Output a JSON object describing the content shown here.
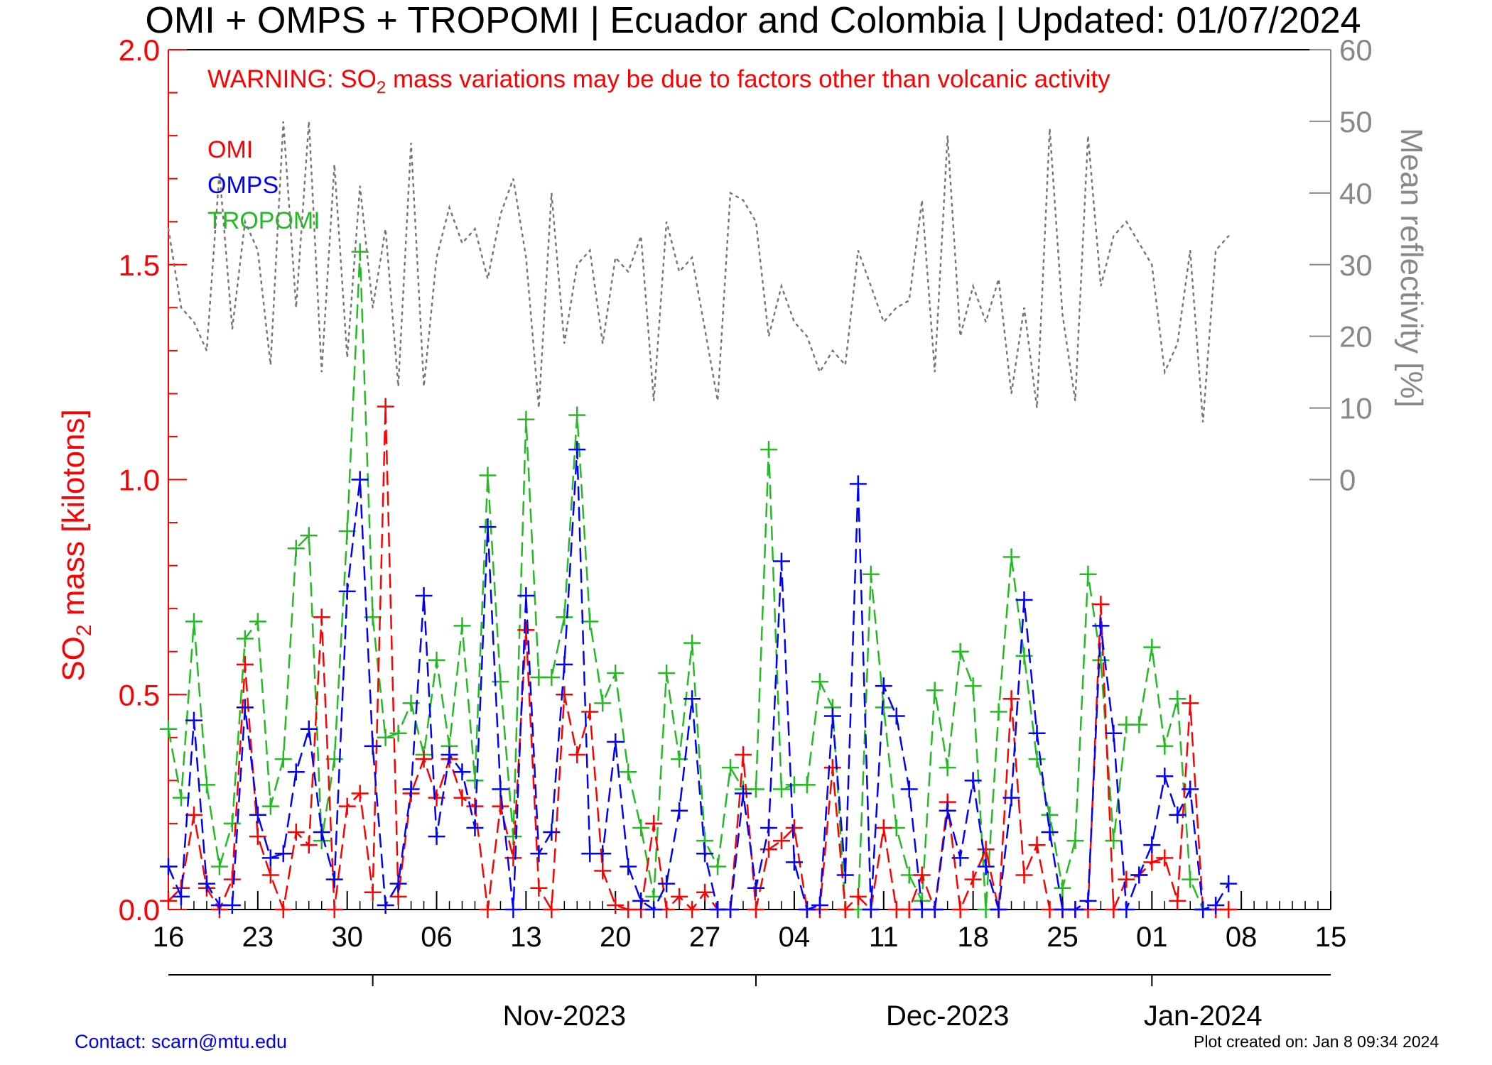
{
  "chart_data": {
    "type": "line",
    "title": "OMI + OMPS + TROPOMI | Ecuador and Colombia | Updated: 01/07/2024",
    "warning_prefix": "WARNING: SO",
    "warning_sub": "2",
    "warning_suffix": " mass variations may be due to factors other than volcanic activity",
    "ylabel_prefix": "SO",
    "ylabel_sub": "2",
    "ylabel_suffix": " mass [kilotons]",
    "y2label": "Mean reflectivity [%]",
    "x_axis": {
      "start": "2023-10-16",
      "end": "2024-01-15",
      "ticks": [
        {
          "date": "2023-10-16",
          "label": "16"
        },
        {
          "date": "2023-10-23",
          "label": "23"
        },
        {
          "date": "2023-10-30",
          "label": "30"
        },
        {
          "date": "2023-11-06",
          "label": "06"
        },
        {
          "date": "2023-11-13",
          "label": "13"
        },
        {
          "date": "2023-11-20",
          "label": "20"
        },
        {
          "date": "2023-11-27",
          "label": "27"
        },
        {
          "date": "2023-12-04",
          "label": "04"
        },
        {
          "date": "2023-12-11",
          "label": "11"
        },
        {
          "date": "2023-12-18",
          "label": "18"
        },
        {
          "date": "2023-12-25",
          "label": "25"
        },
        {
          "date": "2024-01-01",
          "label": "01"
        },
        {
          "date": "2024-01-08",
          "label": "08"
        },
        {
          "date": "2024-01-15",
          "label": "15"
        }
      ],
      "months": [
        {
          "label": "Nov-2023",
          "date": "2023-11-01"
        },
        {
          "label": "Dec-2023",
          "date": "2023-12-01"
        },
        {
          "label": "Jan-2024",
          "date": "2024-01-01"
        }
      ]
    },
    "y_axis": {
      "min": 0.0,
      "max": 2.0,
      "ticks": [
        "0.0",
        "0.5",
        "1.0",
        "1.5",
        "2.0"
      ],
      "minor_step": 0.1
    },
    "y2_axis": {
      "ticks": [
        "0",
        "10",
        "20",
        "30",
        "40",
        "50",
        "60"
      ],
      "maps_to": {
        "0": 1.0,
        "60": 2.0
      }
    },
    "colors": {
      "omi": "#ff0000",
      "omps": "#0000ff",
      "tropomi": "#22bb22",
      "reflectivity": "#777777",
      "axis": "#000000",
      "left_axis": "#ff0000",
      "right_axis": "#888888"
    },
    "legend": {
      "position": "top-left",
      "items": [
        "OMI",
        "OMPS",
        "TROPOMI"
      ]
    },
    "series": [
      {
        "name": "OMI",
        "x": [
          "2023-10-16",
          "2023-10-17",
          "2023-10-18",
          "2023-10-19",
          "2023-10-20",
          "2023-10-21",
          "2023-10-22",
          "2023-10-23",
          "2023-10-24",
          "2023-10-25",
          "2023-10-26",
          "2023-10-27",
          "2023-10-28",
          "2023-10-29",
          "2023-10-30",
          "2023-10-31",
          "2023-11-01",
          "2023-11-02",
          "2023-11-03",
          "2023-11-04",
          "2023-11-05",
          "2023-11-06",
          "2023-11-07",
          "2023-11-08",
          "2023-11-09",
          "2023-11-10",
          "2023-11-11",
          "2023-11-12",
          "2023-11-13",
          "2023-11-14",
          "2023-11-15",
          "2023-11-16",
          "2023-11-17",
          "2023-11-18",
          "2023-11-19",
          "2023-11-20",
          "2023-11-21",
          "2023-11-22",
          "2023-11-23",
          "2023-11-24",
          "2023-11-25",
          "2023-11-26",
          "2023-11-27",
          "2023-11-28",
          "2023-11-29",
          "2023-11-30",
          "2023-12-01",
          "2023-12-02",
          "2023-12-03",
          "2023-12-04",
          "2023-12-05",
          "2023-12-06",
          "2023-12-07",
          "2023-12-08",
          "2023-12-09",
          "2023-12-10",
          "2023-12-11",
          "2023-12-12",
          "2023-12-13",
          "2023-12-14",
          "2023-12-15",
          "2023-12-16",
          "2023-12-17",
          "2023-12-18",
          "2023-12-19",
          "2023-12-20",
          "2023-12-21",
          "2023-12-22",
          "2023-12-23",
          "2023-12-24",
          "2023-12-25",
          "2023-12-26",
          "2023-12-27",
          "2023-12-28",
          "2023-12-29",
          "2023-12-30",
          "2023-12-31",
          "2024-01-01",
          "2024-01-02",
          "2024-01-03",
          "2024-01-04",
          "2024-01-05",
          "2024-01-06",
          "2024-01-07"
        ],
        "y": [
          0.02,
          0.05,
          0.22,
          0.05,
          0.0,
          0.07,
          0.57,
          0.17,
          0.08,
          0.0,
          0.18,
          0.15,
          0.68,
          0.0,
          0.24,
          0.27,
          0.04,
          1.17,
          0.03,
          0.27,
          0.35,
          0.26,
          0.35,
          0.26,
          0.24,
          0.0,
          0.24,
          0.12,
          0.65,
          0.05,
          0.0,
          0.5,
          0.36,
          0.46,
          0.09,
          0.01,
          0.0,
          0.0,
          0.2,
          0.0,
          0.03,
          0.0,
          0.04,
          0.0,
          0.0,
          0.36,
          0.0,
          0.14,
          0.16,
          0.19,
          0.0,
          0.0,
          0.33,
          0.0,
          0.03,
          0.0,
          0.19,
          0.0,
          0.0,
          0.08,
          0.0,
          0.25,
          0.0,
          0.07,
          0.14,
          0.0,
          0.49,
          0.08,
          0.15,
          0.0,
          0.0,
          0.0,
          0.0,
          0.71,
          0.0,
          0.07,
          0.08,
          0.11,
          0.12,
          0.02,
          0.48,
          0.0,
          0.0,
          0.0
        ]
      },
      {
        "name": "OMPS",
        "x": [
          "2023-10-16",
          "2023-10-17",
          "2023-10-18",
          "2023-10-19",
          "2023-10-20",
          "2023-10-21",
          "2023-10-22",
          "2023-10-23",
          "2023-10-24",
          "2023-10-25",
          "2023-10-26",
          "2023-10-27",
          "2023-10-28",
          "2023-10-29",
          "2023-10-30",
          "2023-10-31",
          "2023-11-01",
          "2023-11-02",
          "2023-11-03",
          "2023-11-04",
          "2023-11-05",
          "2023-11-06",
          "2023-11-07",
          "2023-11-08",
          "2023-11-09",
          "2023-11-10",
          "2023-11-11",
          "2023-11-12",
          "2023-11-13",
          "2023-11-14",
          "2023-11-15",
          "2023-11-16",
          "2023-11-17",
          "2023-11-18",
          "2023-11-19",
          "2023-11-20",
          "2023-11-21",
          "2023-11-22",
          "2023-11-23",
          "2023-11-24",
          "2023-11-25",
          "2023-11-26",
          "2023-11-27",
          "2023-11-28",
          "2023-11-29",
          "2023-11-30",
          "2023-12-01",
          "2023-12-02",
          "2023-12-03",
          "2023-12-04",
          "2023-12-05",
          "2023-12-06",
          "2023-12-07",
          "2023-12-08",
          "2023-12-09",
          "2023-12-10",
          "2023-12-11",
          "2023-12-12",
          "2023-12-13",
          "2023-12-14",
          "2023-12-15",
          "2023-12-16",
          "2023-12-17",
          "2023-12-18",
          "2023-12-19",
          "2023-12-20",
          "2023-12-21",
          "2023-12-22",
          "2023-12-23",
          "2023-12-24",
          "2023-12-25",
          "2023-12-26",
          "2023-12-27",
          "2023-12-28",
          "2023-12-29",
          "2023-12-30",
          "2023-12-31",
          "2024-01-01",
          "2024-01-02",
          "2024-01-03",
          "2024-01-04",
          "2024-01-05",
          "2024-01-06",
          "2024-01-07"
        ],
        "y": [
          0.1,
          0.03,
          0.44,
          0.06,
          0.01,
          0.01,
          0.47,
          0.22,
          0.12,
          0.13,
          0.32,
          0.42,
          0.18,
          0.07,
          0.74,
          1.0,
          0.38,
          0.01,
          0.06,
          0.28,
          0.73,
          0.17,
          0.36,
          0.32,
          0.19,
          0.89,
          0.28,
          0.0,
          0.73,
          0.13,
          0.18,
          0.57,
          1.07,
          0.13,
          0.13,
          0.39,
          0.1,
          0.02,
          0.0,
          0.06,
          0.23,
          0.49,
          0.13,
          0.0,
          0.0,
          0.27,
          0.05,
          0.19,
          0.81,
          0.11,
          0.0,
          0.01,
          0.45,
          0.08,
          0.99,
          0.0,
          0.52,
          0.45,
          0.28,
          0.0,
          0.0,
          0.23,
          0.12,
          0.3,
          0.1,
          0.0,
          0.26,
          0.72,
          0.41,
          0.18,
          0.0,
          0.0,
          0.02,
          0.66,
          0.41,
          0.0,
          0.08,
          0.15,
          0.31,
          0.22,
          0.28,
          0.0,
          0.01,
          0.06
        ]
      },
      {
        "name": "TROPOMI",
        "x": [
          "2023-10-16",
          "2023-10-17",
          "2023-10-18",
          "2023-10-19",
          "2023-10-20",
          "2023-10-21",
          "2023-10-22",
          "2023-10-23",
          "2023-10-24",
          "2023-10-25",
          "2023-10-26",
          "2023-10-27",
          "2023-10-28",
          "2023-10-29",
          "2023-10-30",
          "2023-10-31",
          "2023-11-01",
          "2023-11-02",
          "2023-11-03",
          "2023-11-04",
          "2023-11-05",
          "2023-11-06",
          "2023-11-07",
          "2023-11-08",
          "2023-11-09",
          "2023-11-10",
          "2023-11-11",
          "2023-11-12",
          "2023-11-13",
          "2023-11-14",
          "2023-11-15",
          "2023-11-16",
          "2023-11-17",
          "2023-11-18",
          "2023-11-19",
          "2023-11-20",
          "2023-11-21",
          "2023-11-22",
          "2023-11-23",
          "2023-11-24",
          "2023-11-25",
          "2023-11-26",
          "2023-11-27",
          "2023-11-28",
          "2023-11-29",
          "2023-11-30",
          "2023-12-01",
          "2023-12-02",
          "2023-12-03",
          "2023-12-04",
          "2023-12-05",
          "2023-12-06",
          "2023-12-07",
          "2023-12-08",
          "2023-12-09",
          "2023-12-10",
          "2023-12-11",
          "2023-12-12",
          "2023-12-13",
          "2023-12-14",
          "2023-12-15",
          "2023-12-16",
          "2023-12-17",
          "2023-12-18",
          "2023-12-19",
          "2023-12-20",
          "2023-12-21",
          "2023-12-22",
          "2023-12-23",
          "2023-12-24",
          "2023-12-25",
          "2023-12-26",
          "2023-12-27",
          "2023-12-28",
          "2023-12-29",
          "2023-12-30",
          "2023-12-31",
          "2024-01-01",
          "2024-01-02",
          "2024-01-03",
          "2024-01-04",
          "2024-01-05",
          "2024-01-06",
          "2024-01-07"
        ],
        "y": [
          0.42,
          0.26,
          0.67,
          0.29,
          0.1,
          0.2,
          0.63,
          0.67,
          0.24,
          0.35,
          0.84,
          0.87,
          0.16,
          0.35,
          0.88,
          1.53,
          0.68,
          0.4,
          0.41,
          0.48,
          0.36,
          0.58,
          0.38,
          0.66,
          0.3,
          1.01,
          0.53,
          0.17,
          1.14,
          0.54,
          0.54,
          0.68,
          1.15,
          0.67,
          0.48,
          0.55,
          0.32,
          0.19,
          0.03,
          0.55,
          0.35,
          0.62,
          0.16,
          0.1,
          0.33,
          0.28,
          0.28,
          1.07,
          0.28,
          0.29,
          0.29,
          0.53,
          0.47,
          0.0,
          0.0,
          0.78,
          0.47,
          0.19,
          0.08,
          0.02,
          0.51,
          0.33,
          0.6,
          0.52,
          0.0,
          0.46,
          0.82,
          0.59,
          0.35,
          0.22,
          0.05,
          0.16,
          0.78,
          0.58,
          0.16,
          0.43,
          0.43,
          0.61,
          0.38,
          0.49,
          0.07,
          0.0,
          0.0,
          0.0
        ]
      },
      {
        "name": "Mean reflectivity",
        "x": [
          "2023-10-16",
          "2023-10-17",
          "2023-10-18",
          "2023-10-19",
          "2023-10-20",
          "2023-10-21",
          "2023-10-22",
          "2023-10-23",
          "2023-10-24",
          "2023-10-25",
          "2023-10-26",
          "2023-10-27",
          "2023-10-28",
          "2023-10-29",
          "2023-10-30",
          "2023-10-31",
          "2023-11-01",
          "2023-11-02",
          "2023-11-03",
          "2023-11-04",
          "2023-11-05",
          "2023-11-06",
          "2023-11-07",
          "2023-11-08",
          "2023-11-09",
          "2023-11-10",
          "2023-11-11",
          "2023-11-12",
          "2023-11-13",
          "2023-11-14",
          "2023-11-15",
          "2023-11-16",
          "2023-11-17",
          "2023-11-18",
          "2023-11-19",
          "2023-11-20",
          "2023-11-21",
          "2023-11-22",
          "2023-11-23",
          "2023-11-24",
          "2023-11-25",
          "2023-11-26",
          "2023-11-27",
          "2023-11-28",
          "2023-11-29",
          "2023-11-30",
          "2023-12-01",
          "2023-12-02",
          "2023-12-03",
          "2023-12-04",
          "2023-12-05",
          "2023-12-06",
          "2023-12-07",
          "2023-12-08",
          "2023-12-09",
          "2023-12-10",
          "2023-12-11",
          "2023-12-12",
          "2023-12-13",
          "2023-12-14",
          "2023-12-15",
          "2023-12-16",
          "2023-12-17",
          "2023-12-18",
          "2023-12-19",
          "2023-12-20",
          "2023-12-21",
          "2023-12-22",
          "2023-12-23",
          "2023-12-24",
          "2023-12-25",
          "2023-12-26",
          "2023-12-27",
          "2023-12-28",
          "2023-12-29",
          "2023-12-30",
          "2023-12-31",
          "2024-01-01",
          "2024-01-02",
          "2024-01-03",
          "2024-01-04",
          "2024-01-05",
          "2024-01-06",
          "2024-01-07"
        ],
        "y": [
          35,
          24,
          22,
          18,
          43,
          21,
          36,
          32,
          16,
          50,
          24,
          50,
          15,
          44,
          17,
          41,
          24,
          35,
          13,
          47,
          13,
          31,
          38,
          33,
          35,
          28,
          37,
          42,
          31,
          10,
          40,
          19,
          30,
          32,
          19,
          31,
          29,
          34,
          11,
          36,
          29,
          31,
          21,
          11,
          40,
          39,
          36,
          20,
          27,
          22,
          20,
          15,
          18,
          16,
          32,
          27,
          22,
          24,
          25,
          39,
          15,
          48,
          20,
          27,
          22,
          28,
          12,
          24,
          10,
          49,
          23,
          11,
          48,
          27,
          34,
          36,
          33,
          30,
          15,
          19,
          32,
          8,
          32,
          34
        ]
      }
    ]
  },
  "footer": {
    "contact": "Contact: scarn@mtu.edu",
    "created": "Plot created on: Jan  8 09:34 2024"
  }
}
